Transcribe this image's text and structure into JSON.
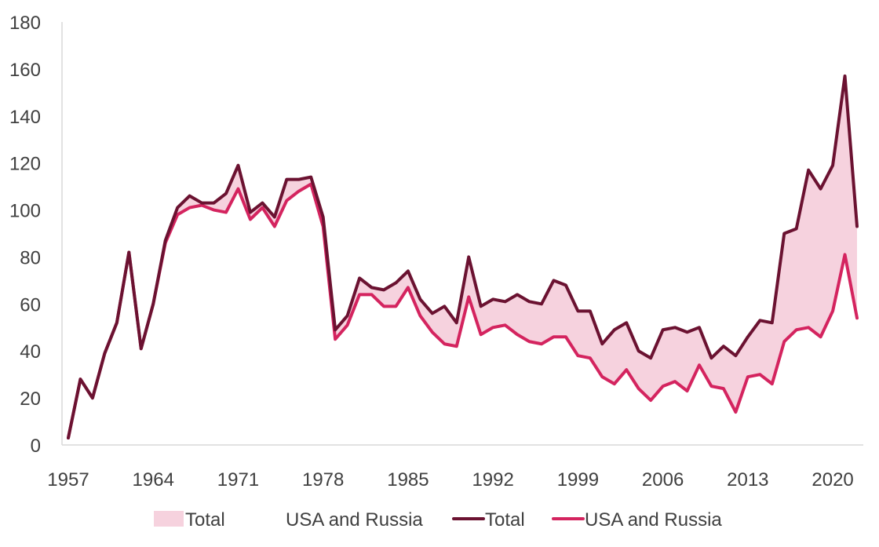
{
  "chart_data": {
    "type": "area",
    "x": [
      1957,
      1958,
      1959,
      1960,
      1961,
      1962,
      1963,
      1964,
      1965,
      1966,
      1967,
      1968,
      1969,
      1970,
      1971,
      1972,
      1973,
      1974,
      1975,
      1976,
      1977,
      1978,
      1979,
      1980,
      1981,
      1982,
      1983,
      1984,
      1985,
      1986,
      1987,
      1988,
      1989,
      1990,
      1991,
      1992,
      1993,
      1994,
      1995,
      1996,
      1997,
      1998,
      1999,
      2000,
      2001,
      2002,
      2003,
      2004,
      2005,
      2006,
      2007,
      2008,
      2009,
      2010,
      2011,
      2012,
      2013,
      2014,
      2015,
      2016,
      2017,
      2018,
      2019,
      2020,
      2021,
      2022
    ],
    "series": [
      {
        "name": "Total",
        "values": [
          3,
          28,
          20,
          39,
          52,
          82,
          41,
          60,
          87,
          101,
          106,
          103,
          103,
          107,
          119,
          99,
          103,
          97,
          113,
          113,
          114,
          97,
          49,
          55,
          71,
          67,
          66,
          69,
          74,
          62,
          56,
          59,
          52,
          80,
          59,
          62,
          61,
          64,
          61,
          60,
          70,
          68,
          57,
          57,
          43,
          49,
          52,
          40,
          37,
          49,
          50,
          48,
          50,
          37,
          42,
          38,
          46,
          53,
          52,
          90,
          92,
          117,
          109,
          119,
          157,
          93
        ]
      },
      {
        "name": "USA and Russia",
        "values": [
          3,
          28,
          20,
          39,
          52,
          82,
          41,
          60,
          86,
          98,
          101,
          102,
          100,
          99,
          109,
          96,
          101,
          93,
          104,
          108,
          111,
          93,
          45,
          51,
          64,
          64,
          59,
          59,
          67,
          55,
          48,
          43,
          42,
          63,
          47,
          50,
          51,
          47,
          44,
          43,
          46,
          46,
          38,
          37,
          29,
          26,
          32,
          24,
          19,
          25,
          27,
          23,
          34,
          25,
          24,
          14,
          29,
          30,
          26,
          44,
          49,
          50,
          46,
          57,
          81,
          54
        ]
      }
    ],
    "x_tick_labels": [
      "1957",
      "1964",
      "1971",
      "1978",
      "1985",
      "1992",
      "1999",
      "2006",
      "2013",
      "2020"
    ],
    "y_tick_labels": [
      "0",
      "20",
      "40",
      "60",
      "80",
      "100",
      "120",
      "140",
      "160",
      "180"
    ],
    "ylim": [
      0,
      180
    ],
    "xlim": [
      1957,
      2022
    ],
    "grid": false,
    "legend_position": "bottom",
    "legend": [
      {
        "label": "Total",
        "kind": "area"
      },
      {
        "label": "USA and Russia",
        "kind": "area"
      },
      {
        "label": "Total",
        "kind": "line"
      },
      {
        "label": "USA and Russia",
        "kind": "line"
      }
    ],
    "colors": {
      "band": "#f6d2de",
      "total_line": "#6b1231",
      "usa_russia_line": "#d4245f",
      "axis": "#d9d9d9",
      "text": "#404040"
    }
  }
}
